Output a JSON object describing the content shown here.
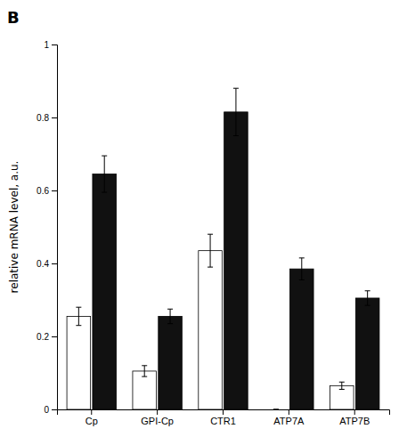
{
  "chart_data": {
    "type": "bar",
    "title": "B",
    "categories": [
      "Cp",
      "GPI-Cp",
      "CTR1",
      "ATP7A",
      "ATP7B"
    ],
    "series": [
      {
        "color": "#ffffff",
        "values": [
          0.255,
          0.105,
          0.435,
          0.0,
          0.065
        ],
        "errors": [
          0.025,
          0.015,
          0.045,
          0.0,
          0.01
        ]
      },
      {
        "color": "#111111",
        "values": [
          0.645,
          0.255,
          0.815,
          0.385,
          0.305
        ],
        "errors": [
          0.05,
          0.02,
          0.065,
          0.03,
          0.02
        ]
      }
    ],
    "y_label": "relative mRNA level, a.u.",
    "ylim": [
      0,
      1.0
    ],
    "yticks": [
      0,
      0.2,
      0.4,
      0.6,
      0.8,
      1.0
    ],
    "grid": false
  }
}
